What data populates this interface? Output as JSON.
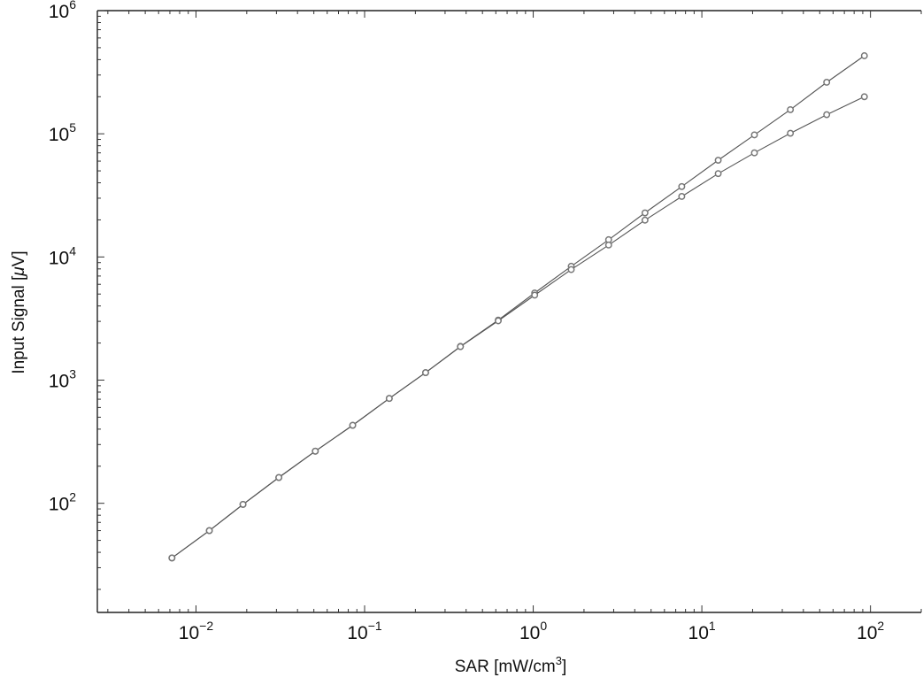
{
  "chart_data": {
    "type": "line",
    "xlabel": "SAR [mW/cm",
    "xlabel_sup": "3",
    "xlabel_suffix": "]",
    "ylabel": "Input Signal [",
    "ylabel_mu": "μ",
    "ylabel_suffix": "V]",
    "xscale": "log",
    "yscale": "log",
    "xlim": [
      0.0026,
      200
    ],
    "ylim": [
      13,
      1000000
    ],
    "grid": false,
    "legend": "none",
    "line_color": "#555555",
    "marker_color": "#777777",
    "x_ticks": [
      {
        "value": 0.01,
        "base": "10",
        "exp": "−2"
      },
      {
        "value": 0.1,
        "base": "10",
        "exp": "−1"
      },
      {
        "value": 1,
        "base": "10",
        "exp": "0"
      },
      {
        "value": 10,
        "base": "10",
        "exp": "1"
      },
      {
        "value": 100,
        "base": "10",
        "exp": "2"
      }
    ],
    "y_ticks": [
      {
        "value": 100,
        "base": "10",
        "exp": "2"
      },
      {
        "value": 1000,
        "base": "10",
        "exp": "3"
      },
      {
        "value": 10000,
        "base": "10",
        "exp": "4"
      },
      {
        "value": 100000,
        "base": "10",
        "exp": "5"
      },
      {
        "value": 1000000,
        "base": "10",
        "exp": "6"
      }
    ],
    "series": [
      {
        "x": [
          0.0072,
          0.012,
          0.019,
          0.031,
          0.051,
          0.085,
          0.14,
          0.23,
          0.37,
          0.62,
          1.02,
          1.68,
          2.8,
          4.6,
          7.6,
          12.5,
          20.5,
          33.5,
          55,
          92
        ],
        "y": [
          36,
          60,
          98,
          162,
          265,
          430,
          710,
          1150,
          1880,
          3070,
          5100,
          8400,
          13800,
          22800,
          37300,
          61000,
          98000,
          157000,
          262000,
          430000
        ]
      },
      {
        "x": [
          0.0072,
          0.012,
          0.019,
          0.031,
          0.051,
          0.085,
          0.14,
          0.23,
          0.37,
          0.62,
          1.02,
          1.68,
          2.8,
          4.6,
          7.6,
          12.5,
          20.5,
          33.5,
          55,
          92
        ],
        "y": [
          36,
          60,
          98,
          162,
          265,
          430,
          710,
          1150,
          1870,
          3030,
          4900,
          7900,
          12500,
          19900,
          31000,
          47500,
          70000,
          101000,
          143000,
          200000
        ]
      }
    ]
  }
}
